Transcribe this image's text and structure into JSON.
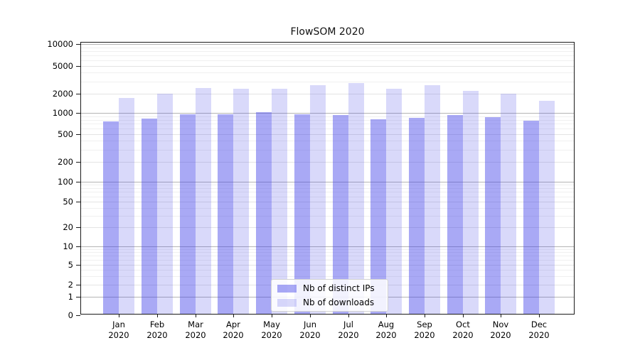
{
  "title": "FlowSOM 2020",
  "chart_data": {
    "type": "bar",
    "title": "FlowSOM 2020",
    "categories": [
      "Jan 2020",
      "Feb 2020",
      "Mar 2020",
      "Apr 2020",
      "May 2020",
      "Jun 2020",
      "Jul 2020",
      "Aug 2020",
      "Sep 2020",
      "Oct 2020",
      "Nov 2020",
      "Dec 2020"
    ],
    "x_tick_labels": {
      "months": [
        "Jan",
        "Feb",
        "Mar",
        "Apr",
        "May",
        "Jun",
        "Jul",
        "Aug",
        "Sep",
        "Oct",
        "Nov",
        "Dec"
      ],
      "year": "2020"
    },
    "series": [
      {
        "name": "Nb of distinct IPs",
        "color": "rgba(64,64,232,0.45)",
        "color_on_white": "#a9a9f5",
        "values": [
          724,
          794,
          912,
          905,
          971,
          907,
          898,
          781,
          807,
          893,
          837,
          735
        ]
      },
      {
        "name": "Nb of downloads",
        "color": "rgba(64,64,232,0.20)",
        "color_on_white": "#d9d9fa",
        "values": [
          1630,
          1900,
          2280,
          2230,
          2260,
          2530,
          2700,
          2250,
          2520,
          2080,
          1885,
          1480
        ]
      }
    ],
    "xlabel": "",
    "ylabel": "",
    "y_scale": "log-like with 0 baseline",
    "ylim": [
      0,
      10000
    ],
    "y_ticks": [
      0,
      1,
      2,
      5,
      10,
      20,
      50,
      100,
      200,
      500,
      1000,
      2000,
      5000,
      10000
    ],
    "grid": true,
    "legend_position": "bottom-center"
  },
  "colors": {
    "grid_major_pow10": "#b4b4b4",
    "grid_major_other": "#e4e4e4",
    "grid_minor": "#f0f0f0",
    "axis_spine": "#1a1a1a",
    "background": "#ffffff"
  }
}
